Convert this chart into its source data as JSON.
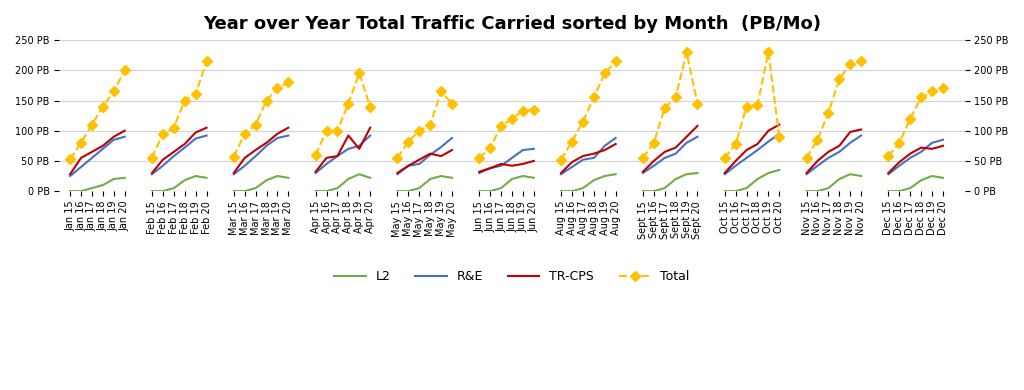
{
  "title": "Year over Year Total Traffic Carried sorted by Month  (PB/Mo)",
  "ylim": [
    0,
    250
  ],
  "yticks": [
    0,
    50,
    100,
    150,
    200,
    250
  ],
  "ytick_labels": [
    "0 PB",
    "50 PB",
    "100 PB",
    "150 PB",
    "200 PB",
    "250 PB"
  ],
  "months": [
    "Jan",
    "Feb",
    "Mar",
    "Apr",
    "May",
    "Jun",
    "Aug",
    "Sept",
    "Oct",
    "Nov",
    "Dec"
  ],
  "years": [
    "15",
    "16",
    "17",
    "18",
    "19",
    "20"
  ],
  "series": {
    "L2": {
      "color": "#70AD47",
      "linestyle": "-",
      "marker": null,
      "linewidth": 1.5
    },
    "R&E": {
      "color": "#4472C4",
      "linestyle": "-",
      "marker": null,
      "linewidth": 1.5
    },
    "TR-CPS": {
      "color": "#C00000",
      "linestyle": "-",
      "marker": null,
      "linewidth": 1.5
    },
    "Total": {
      "color": "#FFC000",
      "linestyle": "--",
      "marker": "D",
      "linewidth": 1.5
    }
  },
  "data": {
    "Jan": {
      "L2": [
        0,
        0,
        5,
        10,
        20,
        22
      ],
      "R&E": [
        25,
        40,
        55,
        70,
        85,
        90
      ],
      "TR-CPS": [
        28,
        55,
        65,
        75,
        90,
        100
      ],
      "Total": [
        53,
        80,
        110,
        140,
        165,
        200
      ]
    },
    "Feb": {
      "L2": [
        0,
        0,
        5,
        18,
        25,
        22
      ],
      "R&E": [
        28,
        42,
        58,
        72,
        87,
        92
      ],
      "TR-CPS": [
        30,
        52,
        65,
        78,
        97,
        105
      ],
      "Total": [
        55,
        95,
        105,
        150,
        160,
        215
      ]
    },
    "Mar": {
      "L2": [
        0,
        0,
        5,
        18,
        25,
        22
      ],
      "R&E": [
        28,
        42,
        58,
        75,
        88,
        92
      ],
      "TR-CPS": [
        30,
        55,
        68,
        80,
        95,
        105
      ],
      "Total": [
        57,
        95,
        110,
        150,
        170,
        180
      ]
    },
    "Apr": {
      "L2": [
        0,
        0,
        5,
        20,
        28,
        22
      ],
      "R&E": [
        30,
        45,
        58,
        70,
        75,
        92
      ],
      "TR-CPS": [
        32,
        55,
        58,
        92,
        70,
        105
      ],
      "Total": [
        60,
        100,
        100,
        145,
        195,
        140
      ]
    },
    "May": {
      "L2": [
        0,
        0,
        5,
        20,
        25,
        22
      ],
      "R&E": [
        28,
        42,
        45,
        60,
        73,
        88
      ],
      "TR-CPS": [
        30,
        42,
        52,
        62,
        58,
        68
      ],
      "Total": [
        55,
        82,
        100,
        110,
        165,
        145
      ]
    },
    "Jun": {
      "L2": [
        0,
        0,
        5,
        20,
        25,
        22
      ],
      "R&E": [
        30,
        38,
        42,
        55,
        68,
        70
      ],
      "TR-CPS": [
        32,
        38,
        45,
        42,
        45,
        50
      ],
      "Total": [
        55,
        72,
        108,
        120,
        133,
        135
      ]
    },
    "Aug": {
      "L2": [
        0,
        0,
        5,
        18,
        25,
        28
      ],
      "R&E": [
        28,
        40,
        52,
        55,
        75,
        88
      ],
      "TR-CPS": [
        30,
        48,
        58,
        62,
        68,
        78
      ],
      "Total": [
        52,
        82,
        115,
        155,
        195,
        215
      ]
    },
    "Sept": {
      "L2": [
        0,
        0,
        5,
        20,
        28,
        30
      ],
      "R&E": [
        30,
        42,
        55,
        62,
        80,
        90
      ],
      "TR-CPS": [
        32,
        50,
        65,
        72,
        90,
        108
      ],
      "Total": [
        55,
        80,
        138,
        155,
        230,
        145
      ]
    },
    "Oct": {
      "L2": [
        0,
        0,
        5,
        20,
        30,
        35
      ],
      "R&E": [
        28,
        42,
        55,
        68,
        82,
        95
      ],
      "TR-CPS": [
        30,
        50,
        68,
        78,
        100,
        110
      ],
      "Total": [
        55,
        78,
        140,
        143,
        230,
        90
      ]
    },
    "Nov": {
      "L2": [
        0,
        0,
        5,
        20,
        28,
        25
      ],
      "R&E": [
        28,
        42,
        55,
        65,
        80,
        92
      ],
      "TR-CPS": [
        30,
        50,
        65,
        75,
        98,
        102
      ],
      "Total": [
        55,
        85,
        130,
        185,
        210,
        215
      ]
    },
    "Dec": {
      "L2": [
        0,
        0,
        5,
        18,
        25,
        22
      ],
      "R&E": [
        28,
        42,
        55,
        65,
        80,
        85
      ],
      "TR-CPS": [
        30,
        48,
        62,
        72,
        70,
        75
      ],
      "Total": [
        58,
        80,
        120,
        155,
        165,
        170
      ]
    }
  },
  "background_color": "#FFFFFF",
  "grid_color": "#D3D3D3",
  "title_fontsize": 13,
  "tick_fontsize": 7,
  "legend_fontsize": 9
}
